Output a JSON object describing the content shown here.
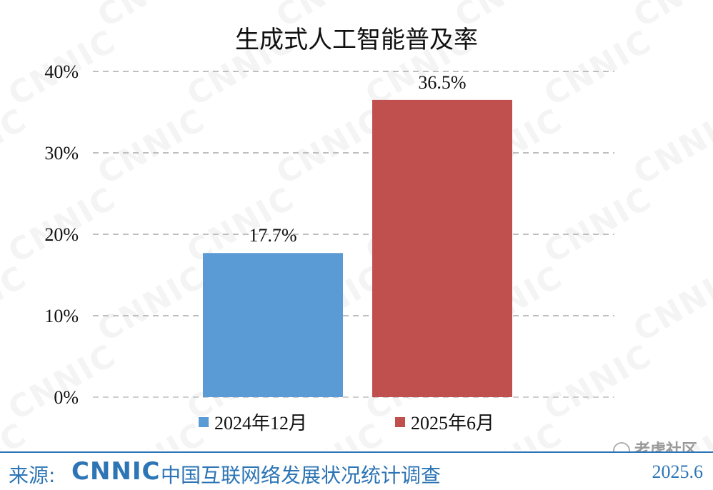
{
  "chart_data": {
    "type": "bar",
    "title": "生成式人工智能普及率",
    "categories": [
      "2024年12月",
      "2025年6月"
    ],
    "values": [
      17.7,
      36.5
    ],
    "value_labels": [
      "17.7%",
      "36.5%"
    ],
    "colors": [
      "#5b9bd5",
      "#c0504d"
    ],
    "y_ticks": [
      "0%",
      "10%",
      "20%",
      "30%",
      "40%"
    ],
    "y_tick_values": [
      0,
      10,
      20,
      30,
      40
    ],
    "ylim": [
      0,
      40
    ],
    "grid": true,
    "legend_position": "bottom",
    "legend": [
      {
        "label": "2024年12月",
        "color": "#5b9bd5"
      },
      {
        "label": "2025年6月",
        "color": "#c0504d"
      }
    ]
  },
  "watermark": "CNNIC",
  "footer": {
    "source_label": "来源:",
    "logo": "CNNIC",
    "survey_name": "中国互联网络发展状况统计调查",
    "date": "2025.6"
  },
  "community_mark": "老虎社区",
  "colors": {
    "accent": "#2e75b6",
    "grid": "#bfbfbf",
    "watermark": "#d9d9d9"
  }
}
